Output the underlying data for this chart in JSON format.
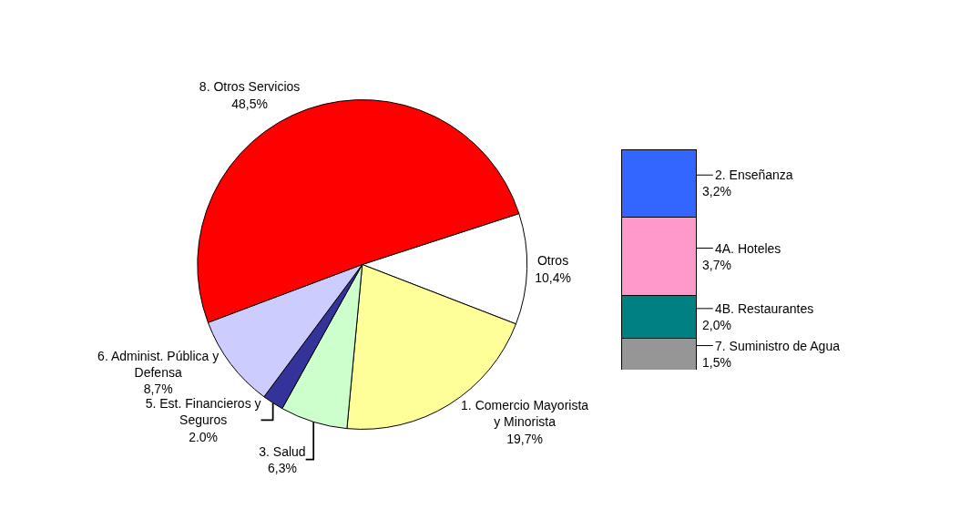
{
  "chart_data": [
    {
      "type": "pie",
      "categories": [
        "Otros",
        "1. Comercio Mayorista y Minorista",
        "3. Salud",
        "5. Est. Financieros y Seguros",
        "6. Administ. Pública y Defensa",
        "8. Otros Servicios"
      ],
      "values": [
        10.4,
        19.7,
        6.3,
        2.0,
        8.7,
        48.5
      ],
      "value_labels": [
        "10,4%",
        "19,7%",
        "6,3%",
        "2.0%",
        "8,7%",
        "48,5%"
      ],
      "colors": [
        "#ffffff",
        "#ffff99",
        "#ccffcc",
        "#333399",
        "#ccccff",
        "#ff0000"
      ]
    },
    {
      "type": "bar",
      "stacked": true,
      "categories": [
        null
      ],
      "series": [
        {
          "name": "7. Suministro de Agua",
          "color": "#969696",
          "values": [
            1.5
          ],
          "value_labels": [
            "1,5%"
          ]
        },
        {
          "name": "4B. Restaurantes",
          "color": "#008080",
          "values": [
            2.0
          ],
          "value_labels": [
            "2,0%"
          ]
        },
        {
          "name": "4A. Hoteles",
          "color": "#ff99cc",
          "values": [
            3.7
          ],
          "value_labels": [
            "3,7%"
          ]
        },
        {
          "name": "2. Enseñanza",
          "color": "#3366ff",
          "values": [
            3.2
          ],
          "value_labels": [
            "3,2%"
          ]
        }
      ]
    }
  ]
}
